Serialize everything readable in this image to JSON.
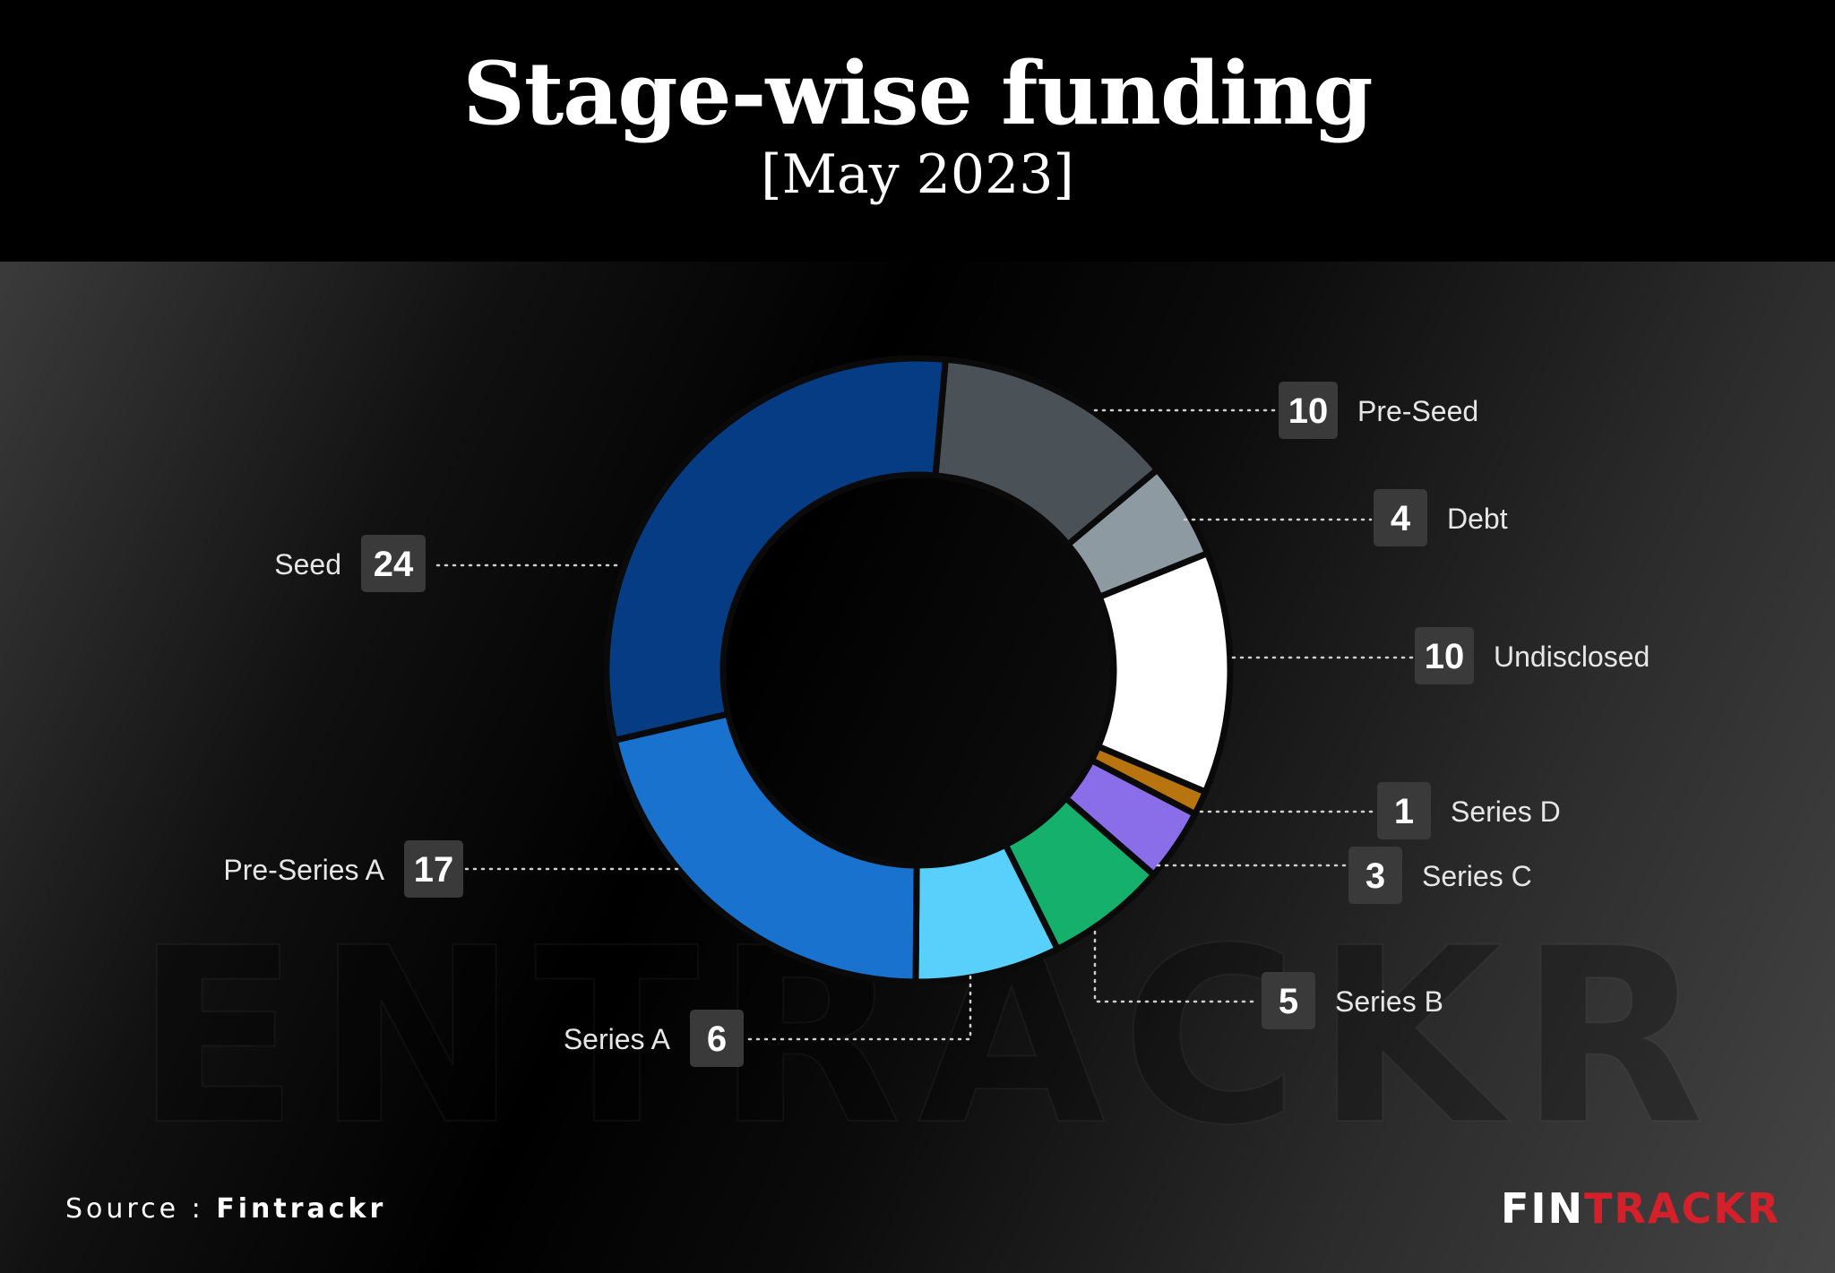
{
  "header": {
    "title": "Stage-wise funding",
    "subtitle": "[May 2023]"
  },
  "watermark": "ENTRACKR",
  "footer": {
    "source_prefix": "Source : ",
    "source_name": "Fintrackr",
    "logo_white": "FIN",
    "logo_red": "TRACKR",
    "logo_red_color": "#d3202a"
  },
  "chart_data": {
    "type": "pie",
    "style": "donut",
    "start_angle_deg": 5,
    "slices": [
      {
        "label": "Pre-Seed",
        "value": 10,
        "color": "#4a5258"
      },
      {
        "label": "Debt",
        "value": 4,
        "color": "#8e9aa1"
      },
      {
        "label": "Undisclosed",
        "value": 10,
        "color": "#ffffff"
      },
      {
        "label": "Series D",
        "value": 1,
        "color": "#b8740f"
      },
      {
        "label": "Series C",
        "value": 3,
        "color": "#8a6de8"
      },
      {
        "label": "Series B",
        "value": 5,
        "color": "#15b06b"
      },
      {
        "label": "Series A",
        "value": 6,
        "color": "#58d0fb"
      },
      {
        "label": "Pre-Series A",
        "value": 17,
        "color": "#1a72cf"
      },
      {
        "label": "Seed",
        "value": 24,
        "color": "#063c84"
      }
    ]
  }
}
